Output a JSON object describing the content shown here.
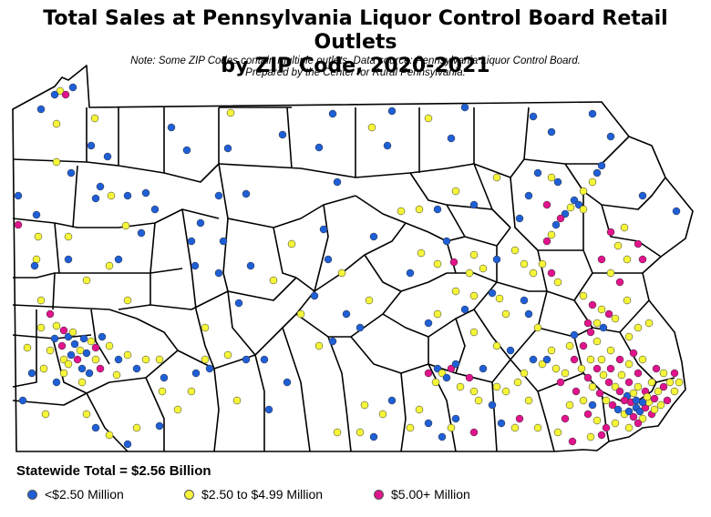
{
  "title_line1": "Total Sales at Pennsylvania Liquor Control Board Retail Outlets",
  "title_line2": "by ZIP Code, 2020-2021",
  "note_line1": "Note: Some ZIP Codes contain multiple outlets. Data source: Pennsylvania Liquor Control Board.",
  "note_line2": "Prepared by the Center for Rural Pennsylvania.",
  "statewide_total": "Statewide Total = $2.56 Billion",
  "legend": [
    {
      "label": "<$2.50 Million",
      "color": "#1f5fd6"
    },
    {
      "label": "$2.50 to $4.99 Million",
      "color": "#f5f53a"
    },
    {
      "label": "$5.00+ Million",
      "color": "#e0148c"
    }
  ],
  "colors": {
    "low": "#1f5fd6",
    "mid": "#f5f53a",
    "high": "#e0148c",
    "outline": "#000000"
  }
}
